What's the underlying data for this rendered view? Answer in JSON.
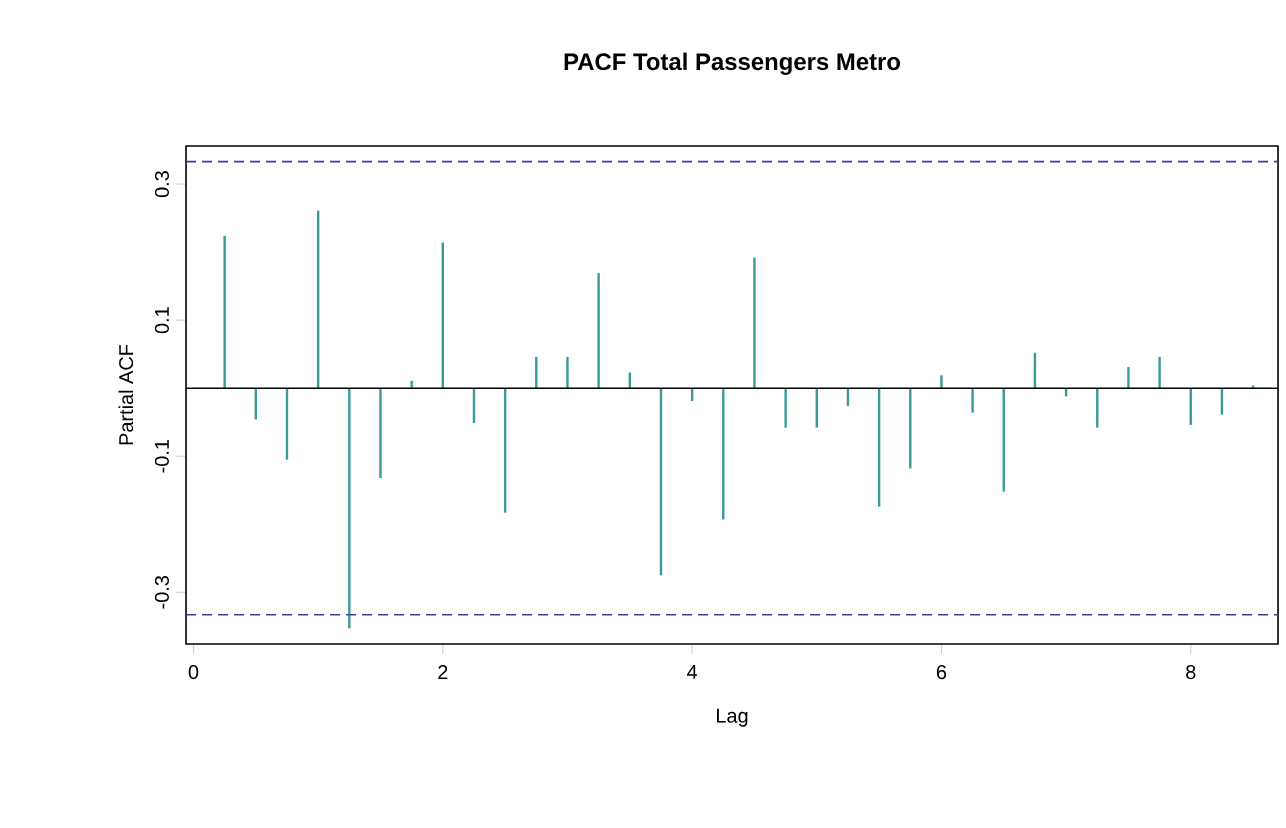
{
  "chart_data": {
    "type": "bar",
    "title": "PACF Total Passengers Metro",
    "xlabel": "Lag",
    "ylabel": "Partial ACF",
    "x": [
      0.25,
      0.5,
      0.75,
      1.0,
      1.25,
      1.5,
      1.75,
      2.0,
      2.25,
      2.5,
      2.75,
      3.0,
      3.25,
      3.5,
      3.75,
      4.0,
      4.25,
      4.5,
      4.75,
      5.0,
      5.25,
      5.5,
      5.75,
      6.0,
      6.25,
      6.5,
      6.75,
      7.0,
      7.25,
      7.5,
      7.75,
      8.0,
      8.25,
      8.5
    ],
    "values": [
      0.224,
      -0.046,
      -0.105,
      0.261,
      -0.353,
      -0.132,
      0.011,
      0.214,
      -0.051,
      -0.183,
      0.046,
      0.046,
      0.169,
      0.023,
      -0.275,
      -0.019,
      -0.193,
      0.192,
      -0.058,
      -0.058,
      -0.026,
      -0.174,
      -0.118,
      0.019,
      -0.036,
      -0.152,
      0.052,
      -0.012,
      -0.058,
      0.031,
      0.046,
      -0.054,
      -0.039,
      0.004
    ],
    "color": "#3a9a9a",
    "xlim": [
      -0.06,
      8.7
    ],
    "ylim": [
      -0.376,
      0.356
    ],
    "xticks": [
      0,
      2,
      4,
      6,
      8
    ],
    "yticks": [
      {
        "value": -0.3,
        "label": "-0.3"
      },
      {
        "value": -0.1,
        "label": "-0.1"
      },
      {
        "value": 0.1,
        "label": "0.1"
      },
      {
        "value": 0.3,
        "label": "0.3"
      }
    ],
    "ref_lines": [
      {
        "axis": "y",
        "value": 0,
        "color": "#000000",
        "line_style": "solid"
      },
      {
        "axis": "y",
        "value": 0.333,
        "color": "#3c3ca0",
        "line_style": "dashed"
      },
      {
        "axis": "y",
        "value": -0.333,
        "color": "#3c3ca0",
        "line_style": "dashed"
      }
    ]
  }
}
